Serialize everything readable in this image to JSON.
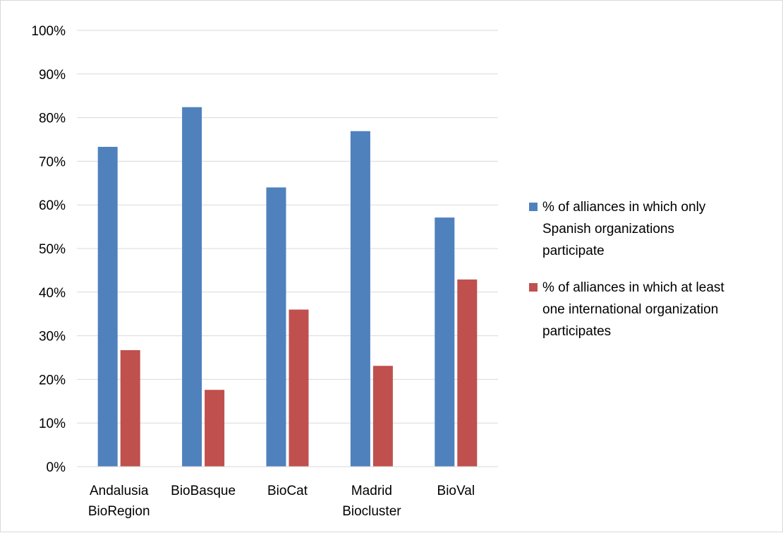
{
  "chart_data": {
    "type": "bar",
    "title": "",
    "xlabel": "",
    "ylabel": "",
    "ylim": [
      0,
      100
    ],
    "y_unit": "%",
    "y_ticks": [
      "0%",
      "10%",
      "20%",
      "30%",
      "40%",
      "50%",
      "60%",
      "70%",
      "80%",
      "90%",
      "100%"
    ],
    "grid": "horizontal",
    "legend_position": "right",
    "categories": [
      [
        "Andalusia",
        "BioRegion"
      ],
      [
        "BioBasque"
      ],
      [
        "BioCat"
      ],
      [
        "Madrid",
        "Biocluster"
      ],
      [
        "BioVal"
      ]
    ],
    "series": [
      {
        "name_lines": [
          "% of alliances in which only",
          "Spanish organizations",
          "participate"
        ],
        "color": "#4f81bd",
        "values": [
          73.3,
          82.4,
          64.0,
          76.9,
          57.1
        ]
      },
      {
        "name_lines": [
          "% of alliances in which at least",
          "one international organization",
          "participates"
        ],
        "color": "#c0504d",
        "values": [
          26.7,
          17.6,
          36.0,
          23.1,
          42.9
        ]
      }
    ]
  }
}
